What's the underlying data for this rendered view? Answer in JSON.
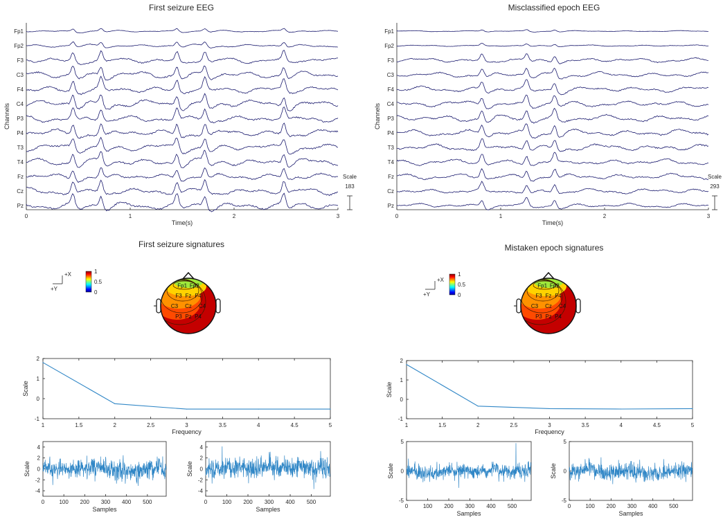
{
  "colors": {
    "eeg_trace": "#1a1a6e",
    "signature_line": "#2f86c6",
    "axis": "#262626",
    "background": "#ffffff"
  },
  "eeg_panels": [
    {
      "title": "First seizure EEG",
      "xlabel": "Time(s)",
      "ylabel": "Channels",
      "channels": [
        "Fp1",
        "Fp2",
        "F3",
        "C3",
        "F4",
        "C4",
        "P3",
        "P4",
        "T3",
        "T4",
        "Fz",
        "Cz",
        "Pz"
      ],
      "x_ticks": [
        "0",
        "1",
        "2",
        "3"
      ],
      "xlim": [
        0,
        3
      ],
      "scale_label": "Scale",
      "scale_value": "183",
      "seed": 11,
      "spike_times": [
        0.45,
        0.72,
        1.45,
        1.72,
        2.48
      ],
      "amplitudes": [
        0.25,
        0.4,
        0.8,
        0.9,
        0.95,
        1.0,
        1.0,
        1.0,
        0.95,
        1.0,
        0.9,
        1.0,
        1.0
      ]
    },
    {
      "title": "Misclassified epoch EEG",
      "xlabel": "Time(s)",
      "ylabel": "Channels",
      "channels": [
        "Fp1",
        "Fp2",
        "F3",
        "C3",
        "F4",
        "C4",
        "P3",
        "P4",
        "T3",
        "T4",
        "Fz",
        "Cz",
        "Pz"
      ],
      "x_ticks": [
        "0",
        "1",
        "2",
        "3"
      ],
      "xlim": [
        0,
        3
      ],
      "scale_label": "Scale",
      "scale_value": "293",
      "seed": 29,
      "spike_times": [
        0.82,
        1.25,
        1.52
      ],
      "amplitudes": [
        0.15,
        0.2,
        0.6,
        0.7,
        0.75,
        0.8,
        0.9,
        0.9,
        0.9,
        0.8,
        0.8,
        0.7,
        0.6
      ]
    }
  ],
  "signature_titles": [
    "First seizure signatures",
    "Mistaken epoch signatures"
  ],
  "axes_indicator": {
    "x_label": "+X",
    "y_label": "+Y"
  },
  "colorbar": {
    "ticks": [
      "1",
      "0.5",
      "0"
    ],
    "range": [
      0,
      1
    ]
  },
  "topo_maps": [
    {
      "labels": [
        {
          "text": "Fp1",
          "u": -0.22,
          "v": -0.74
        },
        {
          "text": "Fp2",
          "u": 0.22,
          "v": -0.74
        },
        {
          "text": "F3",
          "u": -0.35,
          "v": -0.38
        },
        {
          "text": "Fz",
          "u": 0.0,
          "v": -0.38
        },
        {
          "text": "F4",
          "u": 0.35,
          "v": -0.38
        },
        {
          "text": "C3",
          "u": -0.5,
          "v": 0.0
        },
        {
          "text": "Cz",
          "u": 0.0,
          "v": 0.0
        },
        {
          "text": "C4",
          "u": 0.5,
          "v": 0.0
        },
        {
          "text": "P3",
          "u": -0.35,
          "v": 0.38
        },
        {
          "text": "Pz",
          "u": 0.0,
          "v": 0.38
        },
        {
          "text": "P4",
          "u": 0.35,
          "v": 0.38
        }
      ],
      "levels": [
        0.35,
        0.55,
        0.72,
        0.88
      ]
    },
    {
      "labels": [
        {
          "text": "Fp1",
          "u": -0.22,
          "v": -0.74
        },
        {
          "text": "Fp2",
          "u": 0.22,
          "v": -0.74
        },
        {
          "text": "F3",
          "u": -0.35,
          "v": -0.38
        },
        {
          "text": "Fz",
          "u": 0.0,
          "v": -0.38
        },
        {
          "text": "F4",
          "u": 0.35,
          "v": -0.38
        },
        {
          "text": "C3",
          "u": -0.5,
          "v": 0.0
        },
        {
          "text": "Cz",
          "u": 0.0,
          "v": 0.0
        },
        {
          "text": "C4",
          "u": 0.5,
          "v": 0.0
        },
        {
          "text": "P3",
          "u": -0.35,
          "v": 0.38
        },
        {
          "text": "Pz",
          "u": 0.0,
          "v": 0.38
        },
        {
          "text": "P4",
          "u": 0.35,
          "v": 0.38
        }
      ],
      "levels": [
        0.3,
        0.5,
        0.68,
        0.85
      ]
    }
  ],
  "chart_data": [
    {
      "type": "line",
      "title": "",
      "xlabel": "Frequency",
      "ylabel": "Scale",
      "x": [
        1,
        2,
        3,
        4,
        5
      ],
      "series": [
        {
          "values": [
            1.8,
            -0.25,
            -0.52,
            -0.52,
            -0.52
          ]
        }
      ],
      "xlim": [
        1,
        5
      ],
      "ylim": [
        -1,
        2
      ],
      "x_ticks": [
        "1",
        "1.5",
        "2",
        "2.5",
        "3",
        "3.5",
        "4",
        "4.5",
        "5"
      ],
      "y_ticks": [
        "2",
        "1",
        "0",
        "-1"
      ]
    },
    {
      "type": "line",
      "title": "",
      "xlabel": "Frequency",
      "ylabel": "Scale",
      "x": [
        1,
        2,
        3,
        4,
        5
      ],
      "series": [
        {
          "values": [
            1.8,
            -0.35,
            -0.48,
            -0.5,
            -0.48
          ]
        }
      ],
      "xlim": [
        1,
        5
      ],
      "ylim": [
        -1,
        2
      ],
      "x_ticks": [
        "1",
        "1.5",
        "2",
        "2.5",
        "3",
        "3.5",
        "4",
        "4.5",
        "5"
      ],
      "y_ticks": [
        "2",
        "1",
        "0",
        "-1"
      ]
    },
    {
      "type": "line",
      "xlabel": "Samples",
      "ylabel": "Scale",
      "xlim": [
        0,
        590
      ],
      "ylim": [
        -5,
        5
      ],
      "x_ticks": [
        "0",
        "100",
        "200",
        "300",
        "400",
        "500"
      ],
      "y_ticks": [
        "4",
        "2",
        "0",
        "-2",
        "-4"
      ],
      "n_samples": 590,
      "noise_std": 0.9,
      "seed": 3
    },
    {
      "type": "line",
      "xlabel": "Samples",
      "ylabel": "Scale",
      "xlim": [
        0,
        590
      ],
      "ylim": [
        -5,
        5
      ],
      "x_ticks": [
        "0",
        "100",
        "200",
        "300",
        "400",
        "500"
      ],
      "y_ticks": [
        "4",
        "2",
        "0",
        "-2",
        "-4"
      ],
      "n_samples": 590,
      "noise_std": 0.9,
      "seed": 7
    },
    {
      "type": "line",
      "xlabel": "Samples",
      "ylabel": "Scale",
      "xlim": [
        0,
        590
      ],
      "ylim": [
        -5,
        5
      ],
      "x_ticks": [
        "0",
        "100",
        "200",
        "300",
        "400",
        "500"
      ],
      "y_ticks": [
        "5",
        "0",
        "-5"
      ],
      "n_samples": 590,
      "noise_std": 0.6,
      "seed": 13
    },
    {
      "type": "line",
      "xlabel": "Samples",
      "ylabel": "Scale",
      "xlim": [
        0,
        590
      ],
      "ylim": [
        -5,
        5
      ],
      "x_ticks": [
        "0",
        "100",
        "200",
        "300",
        "400",
        "500"
      ],
      "y_ticks": [
        "5",
        "0",
        "-5"
      ],
      "n_samples": 590,
      "noise_std": 0.7,
      "seed": 19
    }
  ]
}
